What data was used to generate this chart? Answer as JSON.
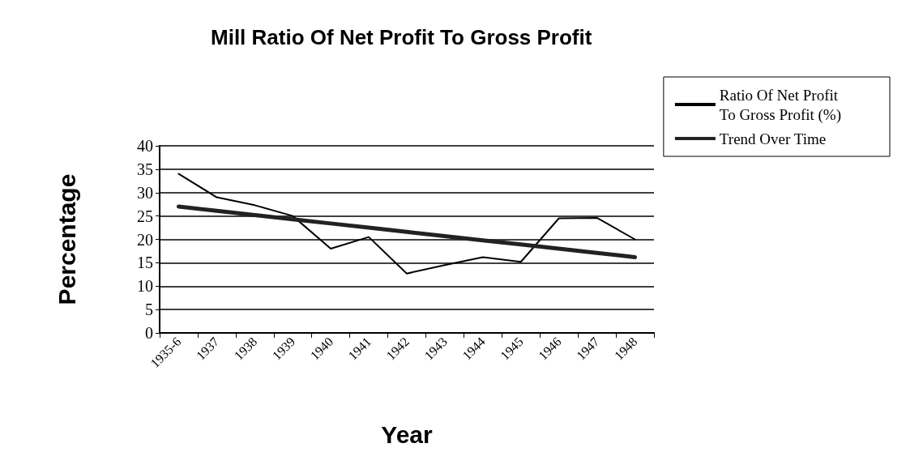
{
  "chart_data": {
    "type": "line",
    "title": "Mill Ratio Of Net Profit To Gross Profit",
    "xlabel": "Year",
    "ylabel": "Percentage",
    "categories": [
      "1935-6",
      "1937",
      "1938",
      "1939",
      "1940",
      "1941",
      "1942",
      "1943",
      "1944",
      "1945",
      "1946",
      "1947",
      "1948"
    ],
    "series": [
      {
        "name": "Ratio Of Net Profit\nTo Gross Profit (%)",
        "color": "#000000",
        "values": [
          34,
          29,
          27.3,
          25,
          18,
          20.5,
          12.7,
          14.5,
          16.2,
          15.2,
          24.5,
          24.6,
          20
        ]
      },
      {
        "name": "Trend Over Time",
        "color": "#222222",
        "values": [
          27,
          26.1,
          25.2,
          24.3,
          23.4,
          22.5,
          21.6,
          20.7,
          19.8,
          18.9,
          18.0,
          17.1,
          16.2
        ]
      }
    ],
    "ylim": [
      0,
      40
    ],
    "yticks": [
      0,
      5,
      10,
      15,
      20,
      25,
      30,
      35,
      40
    ],
    "grid": "y",
    "legend": "top right",
    "marker": "none"
  }
}
